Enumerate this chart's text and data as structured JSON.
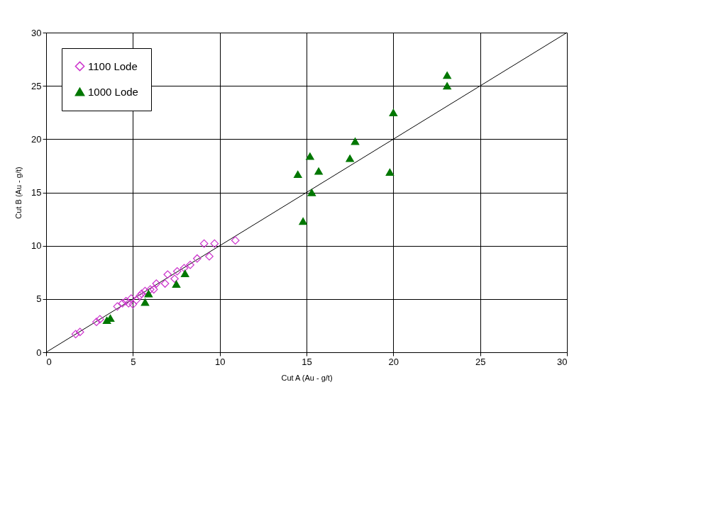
{
  "chart_data": {
    "type": "scatter",
    "xlabel": "Cut A (Au - g/t)",
    "ylabel": "Cut B (Au - g/t)",
    "xlim": [
      0,
      30
    ],
    "ylim": [
      0,
      30
    ],
    "xticks": [
      0,
      5,
      10,
      15,
      20,
      25,
      30
    ],
    "yticks": [
      0,
      5,
      10,
      15,
      20,
      25,
      30
    ],
    "grid": true,
    "legend": "top left",
    "series": [
      {
        "name": "1100 Lode",
        "color": "#cc33cc",
        "marker": "diamond",
        "x": [
          1.7,
          1.95,
          2.9,
          3.1,
          4.1,
          4.4,
          4.6,
          4.75,
          4.9,
          5.0,
          5.2,
          5.4,
          5.5,
          5.7,
          5.8,
          6.0,
          6.2,
          6.35,
          6.85,
          7.0,
          7.4,
          7.55,
          7.95,
          8.3,
          8.7,
          9.1,
          9.4,
          9.7,
          10.9
        ],
        "values": [
          1.7,
          1.9,
          2.85,
          3.1,
          4.3,
          4.6,
          4.8,
          4.6,
          5.05,
          4.5,
          4.9,
          5.3,
          5.5,
          5.75,
          null,
          5.9,
          5.9,
          6.45,
          6.45,
          7.3,
          6.9,
          7.6,
          7.9,
          8.2,
          8.8,
          10.2,
          9.0,
          10.2,
          10.5
        ]
      },
      {
        "name": "1000 Lode",
        "color": "#007700",
        "marker": "triangle",
        "x": [
          3.5,
          3.7,
          5.7,
          5.9,
          7.5,
          8.0,
          14.5,
          14.8,
          15.2,
          15.3,
          15.7,
          17.5,
          17.8,
          19.8,
          20.0,
          23.1,
          23.1
        ],
        "values": [
          3.0,
          3.2,
          4.7,
          5.5,
          6.4,
          7.4,
          16.7,
          12.3,
          18.4,
          15.0,
          17.0,
          18.2,
          19.8,
          16.9,
          22.5,
          25.0,
          26.0
        ]
      },
      {
        "type": "line",
        "color": "#000000",
        "x": [
          0,
          30
        ],
        "values": [
          0,
          30
        ]
      }
    ]
  }
}
